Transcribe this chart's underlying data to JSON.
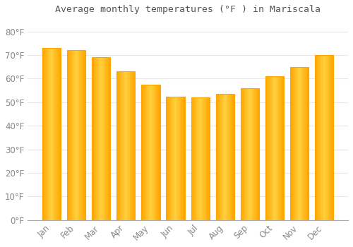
{
  "title": "Average monthly temperatures (°F ) in Mariscala",
  "months": [
    "Jan",
    "Feb",
    "Mar",
    "Apr",
    "May",
    "Jun",
    "Jul",
    "Aug",
    "Sep",
    "Oct",
    "Nov",
    "Dec"
  ],
  "values": [
    73,
    72,
    69,
    63,
    57.5,
    52.5,
    52,
    53.5,
    56,
    61,
    65,
    70
  ],
  "bar_color_center": "#FFD060",
  "bar_color_edge": "#FFA500",
  "background_color": "#FFFFFF",
  "plot_bg_color": "#FFFFFF",
  "grid_color": "#E8E8E8",
  "tick_label_color": "#888888",
  "title_color": "#555555",
  "ylim": [
    0,
    85
  ],
  "yticks": [
    0,
    10,
    20,
    30,
    40,
    50,
    60,
    70,
    80
  ],
  "figsize": [
    5.0,
    3.5
  ],
  "dpi": 100,
  "bar_width": 0.75
}
